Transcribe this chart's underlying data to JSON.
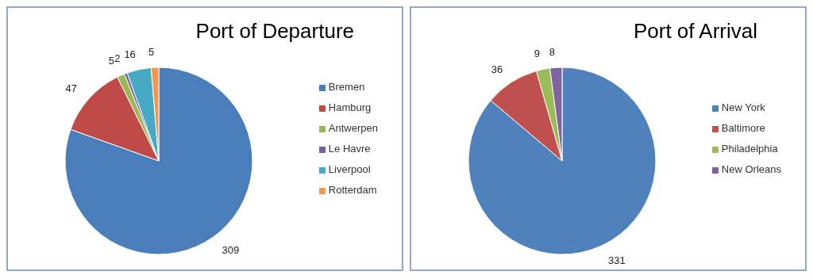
{
  "chart_data": [
    {
      "type": "pie",
      "title": "Port of Departure",
      "categories": [
        "Bremen",
        "Hamburg",
        "Antwerpen",
        "Le Havre",
        "Liverpool",
        "Rotterdam"
      ],
      "values": [
        309,
        47,
        5,
        2,
        16,
        5
      ],
      "colors": [
        "#4a7ebb",
        "#be4b48",
        "#98b954",
        "#7d60a0",
        "#46aac5",
        "#f79646"
      ],
      "data_labels": true,
      "legend": "right"
    },
    {
      "type": "pie",
      "title": "Port of Arrival",
      "categories": [
        "New York",
        "Baltimore",
        "Philadelphia",
        "New Orleans"
      ],
      "values": [
        331,
        36,
        9,
        8
      ],
      "colors": [
        "#4f81bd",
        "#c0504d",
        "#9bbb59",
        "#8064a2"
      ],
      "data_labels": true,
      "legend": "right"
    }
  ]
}
